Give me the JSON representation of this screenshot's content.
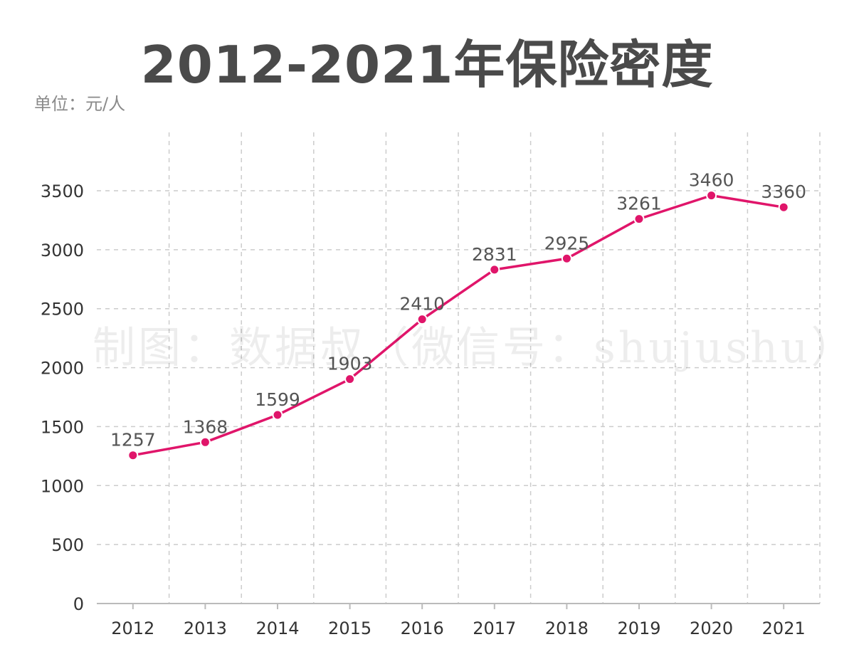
{
  "title": "2012-2021年保险密度",
  "unit_label": "单位：元/人",
  "watermark": "制图：数据叔（微信号：shujushu）",
  "colors": {
    "line": "#e0156a",
    "grid": "#cccccc",
    "axis": "#bbbbbb",
    "label": "#555555",
    "tick": "#333333"
  },
  "chart_data": {
    "type": "line",
    "title": "2012-2021年保险密度",
    "xlabel": "",
    "ylabel": "",
    "unit": "元/人",
    "x": [
      "2012",
      "2013",
      "2014",
      "2015",
      "2016",
      "2017",
      "2018",
      "2019",
      "2020",
      "2021"
    ],
    "series": [
      {
        "values": [
          1257,
          1368,
          1599,
          1903,
          2410,
          2831,
          2925,
          3261,
          3460,
          3360
        ]
      }
    ],
    "ylim": [
      0,
      3500
    ],
    "yticks": [
      0,
      500,
      1000,
      1500,
      2000,
      2500,
      3000,
      3500
    ],
    "grid": true,
    "data_labels": [
      "1257",
      "1368",
      "1599",
      "1903",
      "2410",
      "2831",
      "2925",
      "3261",
      "3460",
      "3360"
    ]
  }
}
